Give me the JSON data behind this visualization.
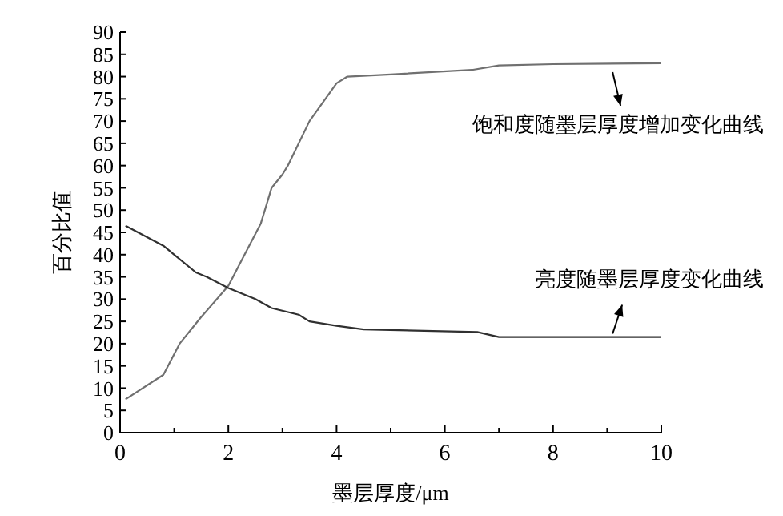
{
  "chart_data": {
    "type": "line",
    "xlabel": "墨层厚度/μm",
    "ylabel": "百分比值",
    "xlim": [
      0,
      10
    ],
    "ylim": [
      0,
      90
    ],
    "xticks": [
      0,
      {
        "value": 1,
        "label": null
      },
      2,
      {
        "value": 3,
        "label": null
      },
      4,
      {
        "value": 5,
        "label": null
      },
      6,
      {
        "value": 7,
        "label": null
      },
      8,
      {
        "value": 9,
        "label": null
      },
      10
    ],
    "yticks": [
      0,
      5,
      10,
      15,
      20,
      25,
      30,
      35,
      40,
      45,
      50,
      55,
      60,
      65,
      70,
      75,
      80,
      85,
      90
    ],
    "grid": false,
    "marker": "none",
    "line_style": "solid",
    "series": [
      {
        "color": "#707070",
        "x": [
          0.1,
          0.8,
          1.1,
          1.5,
          2,
          2.3,
          2.6,
          2.8,
          3.0,
          3.1,
          3.5,
          4.0,
          4.2,
          5,
          6.5,
          7,
          8,
          10
        ],
        "values": [
          7.5,
          13,
          20,
          26,
          33,
          40,
          47,
          55,
          58,
          60,
          70,
          78.5,
          80,
          80.5,
          81.5,
          82.5,
          82.8,
          83
        ]
      },
      {
        "color": "#303030",
        "x": [
          0.1,
          0.8,
          1.0,
          1.4,
          1.6,
          2,
          2.5,
          2.8,
          3.3,
          3.5,
          4,
          4.5,
          6.6,
          7.0,
          10
        ],
        "values": [
          46.5,
          42,
          40,
          36,
          35,
          32.5,
          30,
          28,
          26.5,
          25,
          24,
          23.2,
          22.6,
          21.5,
          21.5
        ]
      }
    ],
    "annotations": [
      {
        "text": "饱和度随墨层厚度增加变化曲线",
        "x": 9.1,
        "y": 82.8
      },
      {
        "text": "亮度随墨层厚度变化曲线",
        "x": 9.1,
        "y": 21.5
      }
    ]
  }
}
